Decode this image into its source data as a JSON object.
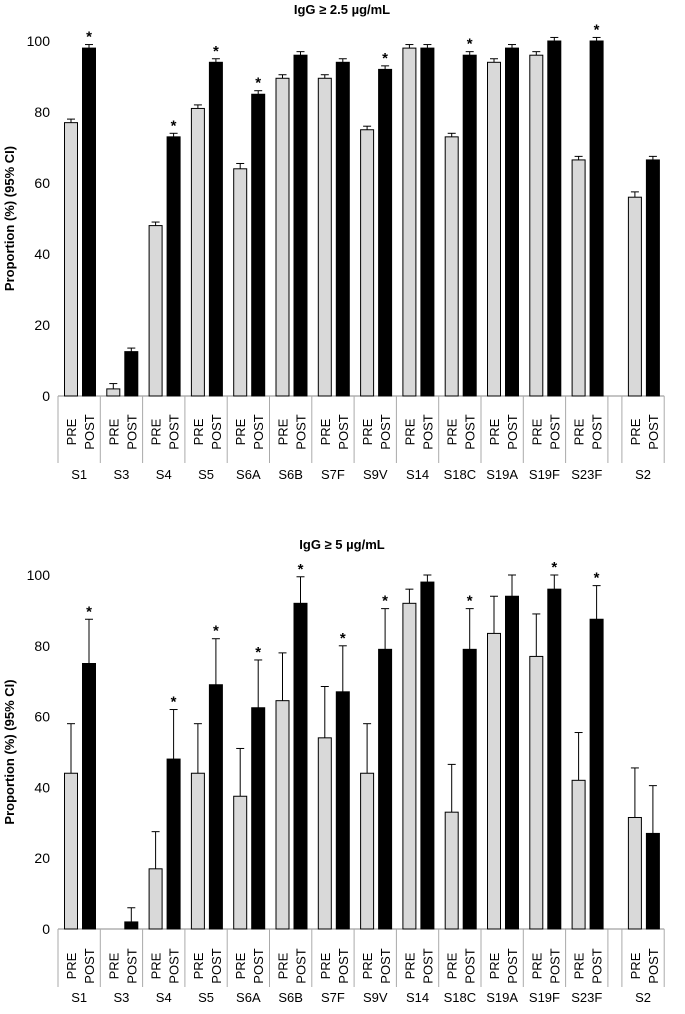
{
  "chart_data": [
    {
      "type": "bar",
      "title": "IgG ≥ 2.5 µg/mL",
      "ylabel": "Proportion (%) (95% CI)",
      "xlabel": "",
      "ylim": [
        0,
        100
      ],
      "yticks": [
        "0",
        "20",
        "40",
        "60",
        "80",
        "100"
      ],
      "groups": [
        "S1",
        "S3",
        "S4",
        "S5",
        "S6A",
        "S6B",
        "S7F",
        "S9V",
        "S14",
        "S18C",
        "S19A",
        "S19F",
        "S23F",
        "S2"
      ],
      "series": [
        {
          "name": "PRE",
          "color": "#d9d9d9",
          "values": [
            77,
            2,
            48,
            81,
            64,
            89.5,
            89.5,
            75,
            98,
            73,
            94,
            96,
            66.5,
            56
          ]
        },
        {
          "name": "POST",
          "color": "#000000",
          "values": [
            98,
            12.5,
            73,
            94,
            85,
            96,
            94,
            92,
            98,
            96,
            98,
            100,
            100,
            66.5
          ]
        }
      ],
      "ci_upper": {
        "PRE": [
          78,
          3.5,
          49,
          82,
          65.5,
          90.5,
          90.5,
          76,
          99,
          74,
          95,
          97,
          67.5,
          57.5
        ],
        "POST": [
          99,
          13.5,
          74,
          95,
          86,
          97,
          95,
          93,
          99,
          97,
          99,
          101,
          101,
          67.5
        ]
      },
      "significant_post": [
        true,
        false,
        true,
        true,
        true,
        false,
        false,
        true,
        false,
        true,
        false,
        false,
        true,
        false
      ],
      "category_labels": [
        "PRE",
        "POST"
      ],
      "star_label": "*"
    },
    {
      "type": "bar",
      "title": "IgG ≥ 5 µg/mL",
      "ylabel": "Proportion (%) (95% CI)",
      "xlabel": "",
      "ylim": [
        0,
        100
      ],
      "yticks": [
        "0",
        "20",
        "40",
        "60",
        "80",
        "100"
      ],
      "groups": [
        "S1",
        "S3",
        "S4",
        "S5",
        "S6A",
        "S6B",
        "S7F",
        "S9V",
        "S14",
        "S18C",
        "S19A",
        "S19F",
        "S23F",
        "S2"
      ],
      "series": [
        {
          "name": "PRE",
          "color": "#d9d9d9",
          "values": [
            44,
            0,
            17,
            44,
            37.5,
            64.5,
            54,
            44,
            92,
            33,
            83.5,
            77,
            42,
            31.5
          ]
        },
        {
          "name": "POST",
          "color": "#000000",
          "values": [
            75,
            2,
            48,
            69,
            62.5,
            92,
            67,
            79,
            98,
            79,
            94,
            96,
            87.5,
            27
          ]
        }
      ],
      "ci_upper": {
        "PRE": [
          58,
          0,
          27.5,
          58,
          51,
          78,
          68.5,
          58,
          96,
          46.5,
          94,
          89,
          55.5,
          45.5
        ],
        "POST": [
          87.5,
          6,
          62,
          82,
          76,
          99.5,
          80,
          90.5,
          100,
          90.5,
          100,
          100,
          97,
          40.5
        ]
      },
      "significant_post": [
        true,
        false,
        true,
        true,
        true,
        true,
        true,
        true,
        false,
        true,
        false,
        true,
        true,
        false
      ],
      "category_labels": [
        "PRE",
        "POST"
      ],
      "star_label": "*"
    }
  ]
}
